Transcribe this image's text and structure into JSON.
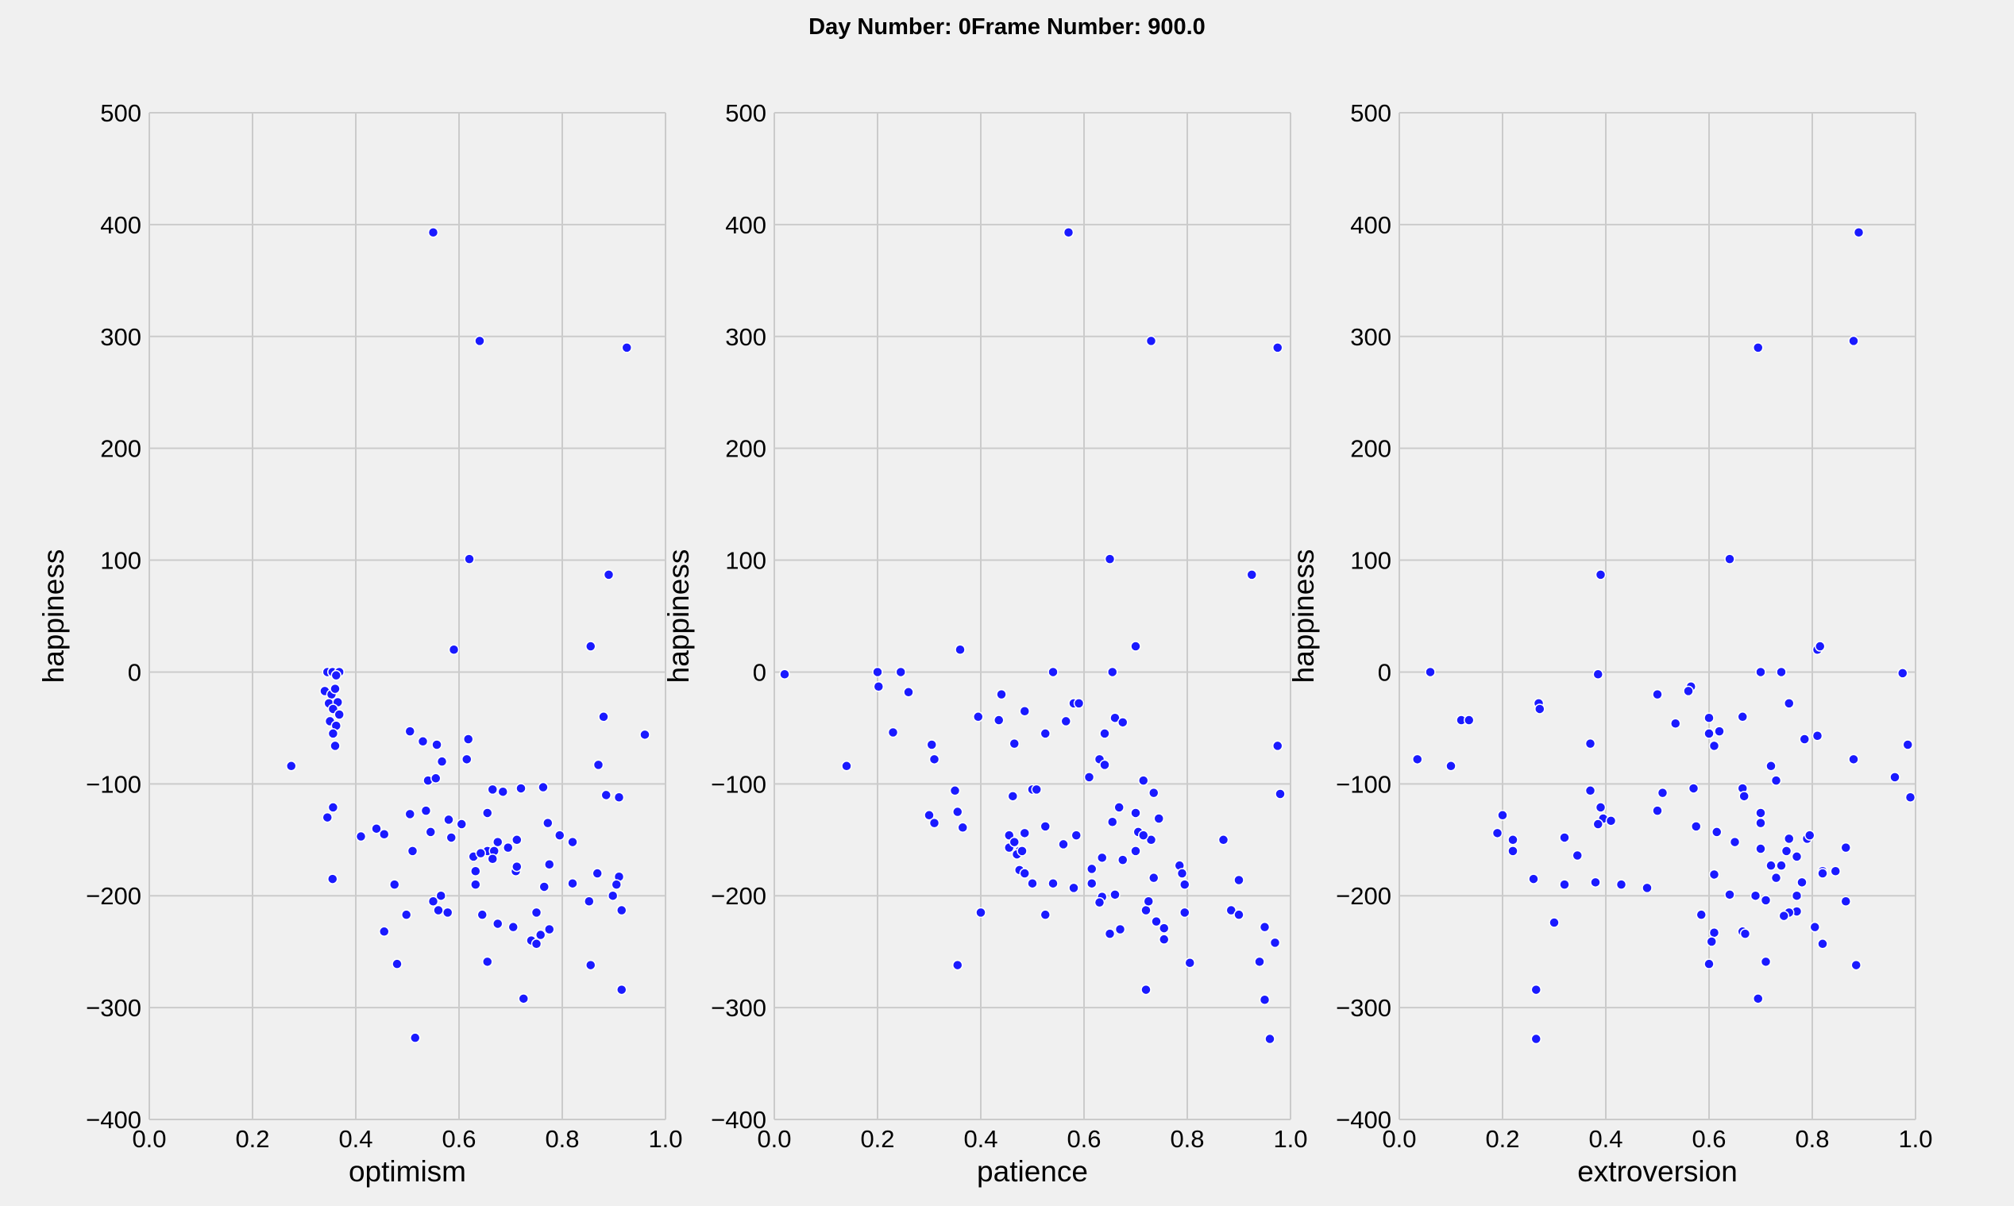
{
  "colors": {
    "background": "#f0f0f0",
    "grid": "#cbcbcb",
    "point": "#1a1aff",
    "point_edge": "#ffffff",
    "text": "#000000"
  },
  "figure": {
    "title": "Day Number: 0Frame Number: 900.0"
  },
  "chart_data": [
    {
      "type": "scatter",
      "title": "",
      "xlabel": "optimism",
      "ylabel": "happiness",
      "xlim": [
        0.0,
        1.0
      ],
      "ylim": [
        -400,
        500
      ],
      "xticks": [
        0.0,
        0.2,
        0.4,
        0.6,
        0.8,
        1.0
      ],
      "xtick_labels": [
        "0.0",
        "0.2",
        "0.4",
        "0.6",
        "0.8",
        "1.0"
      ],
      "yticks": [
        500,
        400,
        300,
        200,
        100,
        0,
        -100,
        -200,
        -300,
        -400
      ],
      "ytick_labels": [
        "500",
        "400",
        "300",
        "200",
        "100",
        "0",
        "−100",
        "−200",
        "−300",
        "−400"
      ],
      "grid": true,
      "points": [
        [
          0.55,
          393
        ],
        [
          0.64,
          296
        ],
        [
          0.925,
          290
        ],
        [
          0.62,
          101
        ],
        [
          0.89,
          87
        ],
        [
          0.59,
          20
        ],
        [
          0.855,
          23
        ],
        [
          0.345,
          0
        ],
        [
          0.355,
          0
        ],
        [
          0.368,
          0
        ],
        [
          0.362,
          -3
        ],
        [
          0.34,
          -17
        ],
        [
          0.353,
          -20
        ],
        [
          0.36,
          -15
        ],
        [
          0.348,
          -28
        ],
        [
          0.365,
          -27
        ],
        [
          0.356,
          -33
        ],
        [
          0.368,
          -38
        ],
        [
          0.35,
          -44
        ],
        [
          0.362,
          -48
        ],
        [
          0.356,
          -55
        ],
        [
          0.36,
          -66
        ],
        [
          0.88,
          -40
        ],
        [
          0.96,
          -56
        ],
        [
          0.87,
          -83
        ],
        [
          0.275,
          -84
        ],
        [
          0.505,
          -53
        ],
        [
          0.53,
          -62
        ],
        [
          0.557,
          -65
        ],
        [
          0.618,
          -60
        ],
        [
          0.615,
          -78
        ],
        [
          0.567,
          -80
        ],
        [
          0.54,
          -97
        ],
        [
          0.555,
          -95
        ],
        [
          0.885,
          -110
        ],
        [
          0.91,
          -112
        ],
        [
          0.72,
          -104
        ],
        [
          0.763,
          -103
        ],
        [
          0.665,
          -105
        ],
        [
          0.685,
          -107
        ],
        [
          0.356,
          -121
        ],
        [
          0.345,
          -130
        ],
        [
          0.505,
          -127
        ],
        [
          0.536,
          -124
        ],
        [
          0.58,
          -132
        ],
        [
          0.605,
          -136
        ],
        [
          0.655,
          -126
        ],
        [
          0.772,
          -135
        ],
        [
          0.44,
          -140
        ],
        [
          0.455,
          -145
        ],
        [
          0.41,
          -147
        ],
        [
          0.545,
          -143
        ],
        [
          0.585,
          -148
        ],
        [
          0.795,
          -146
        ],
        [
          0.82,
          -152
        ],
        [
          0.51,
          -160
        ],
        [
          0.675,
          -152
        ],
        [
          0.712,
          -150
        ],
        [
          0.655,
          -160
        ],
        [
          0.668,
          -160
        ],
        [
          0.695,
          -157
        ],
        [
          0.628,
          -165
        ],
        [
          0.642,
          -162
        ],
        [
          0.665,
          -167
        ],
        [
          0.632,
          -178
        ],
        [
          0.71,
          -178
        ],
        [
          0.712,
          -174
        ],
        [
          0.775,
          -172
        ],
        [
          0.868,
          -180
        ],
        [
          0.91,
          -183
        ],
        [
          0.632,
          -190
        ],
        [
          0.765,
          -192
        ],
        [
          0.905,
          -190
        ],
        [
          0.82,
          -189
        ],
        [
          0.355,
          -185
        ],
        [
          0.475,
          -190
        ],
        [
          0.898,
          -200
        ],
        [
          0.852,
          -205
        ],
        [
          0.55,
          -205
        ],
        [
          0.565,
          -200
        ],
        [
          0.915,
          -213
        ],
        [
          0.498,
          -217
        ],
        [
          0.56,
          -213
        ],
        [
          0.578,
          -215
        ],
        [
          0.645,
          -217
        ],
        [
          0.75,
          -215
        ],
        [
          0.455,
          -232
        ],
        [
          0.675,
          -225
        ],
        [
          0.705,
          -228
        ],
        [
          0.775,
          -230
        ],
        [
          0.758,
          -235
        ],
        [
          0.74,
          -240
        ],
        [
          0.75,
          -243
        ],
        [
          0.48,
          -261
        ],
        [
          0.655,
          -259
        ],
        [
          0.855,
          -262
        ],
        [
          0.725,
          -292
        ],
        [
          0.915,
          -284
        ],
        [
          0.515,
          -327
        ]
      ]
    },
    {
      "type": "scatter",
      "title": "",
      "xlabel": "patience",
      "ylabel": "happiness",
      "xlim": [
        0.0,
        1.0
      ],
      "ylim": [
        -400,
        500
      ],
      "xticks": [
        0.0,
        0.2,
        0.4,
        0.6,
        0.8,
        1.0
      ],
      "xtick_labels": [
        "0.0",
        "0.2",
        "0.4",
        "0.6",
        "0.8",
        "1.0"
      ],
      "yticks": [
        500,
        400,
        300,
        200,
        100,
        0,
        -100,
        -200,
        -300,
        -400
      ],
      "ytick_labels": [
        "500",
        "400",
        "300",
        "200",
        "100",
        "0",
        "−100",
        "−200",
        "−300",
        "−400"
      ],
      "grid": true,
      "points": [
        [
          0.57,
          393
        ],
        [
          0.73,
          296
        ],
        [
          0.975,
          290
        ],
        [
          0.65,
          101
        ],
        [
          0.925,
          87
        ],
        [
          0.02,
          -2
        ],
        [
          0.2,
          0
        ],
        [
          0.245,
          0
        ],
        [
          0.36,
          20
        ],
        [
          0.54,
          0
        ],
        [
          0.655,
          0
        ],
        [
          0.7,
          23
        ],
        [
          0.202,
          -13
        ],
        [
          0.26,
          -18
        ],
        [
          0.44,
          -20
        ],
        [
          0.58,
          -28
        ],
        [
          0.59,
          -28
        ],
        [
          0.485,
          -35
        ],
        [
          0.395,
          -40
        ],
        [
          0.435,
          -43
        ],
        [
          0.565,
          -44
        ],
        [
          0.66,
          -41
        ],
        [
          0.675,
          -45
        ],
        [
          0.23,
          -54
        ],
        [
          0.525,
          -55
        ],
        [
          0.64,
          -55
        ],
        [
          0.305,
          -65
        ],
        [
          0.465,
          -64
        ],
        [
          0.975,
          -66
        ],
        [
          0.31,
          -78
        ],
        [
          0.14,
          -84
        ],
        [
          0.63,
          -78
        ],
        [
          0.64,
          -83
        ],
        [
          0.61,
          -94
        ],
        [
          0.715,
          -97
        ],
        [
          0.35,
          -106
        ],
        [
          0.5,
          -105
        ],
        [
          0.508,
          -105
        ],
        [
          0.735,
          -108
        ],
        [
          0.98,
          -109
        ],
        [
          0.462,
          -111
        ],
        [
          0.355,
          -125
        ],
        [
          0.3,
          -128
        ],
        [
          0.31,
          -135
        ],
        [
          0.365,
          -139
        ],
        [
          0.485,
          -144
        ],
        [
          0.668,
          -121
        ],
        [
          0.7,
          -126
        ],
        [
          0.745,
          -131
        ],
        [
          0.655,
          -134
        ],
        [
          0.525,
          -138
        ],
        [
          0.455,
          -146
        ],
        [
          0.585,
          -146
        ],
        [
          0.73,
          -150
        ],
        [
          0.705,
          -143
        ],
        [
          0.715,
          -146
        ],
        [
          0.87,
          -150
        ],
        [
          0.455,
          -157
        ],
        [
          0.465,
          -152
        ],
        [
          0.475,
          -160
        ],
        [
          0.47,
          -163
        ],
        [
          0.48,
          -160
        ],
        [
          0.56,
          -154
        ],
        [
          0.7,
          -160
        ],
        [
          0.675,
          -168
        ],
        [
          0.635,
          -166
        ],
        [
          0.615,
          -176
        ],
        [
          0.785,
          -173
        ],
        [
          0.79,
          -180
        ],
        [
          0.475,
          -177
        ],
        [
          0.485,
          -180
        ],
        [
          0.5,
          -189
        ],
        [
          0.54,
          -189
        ],
        [
          0.58,
          -193
        ],
        [
          0.615,
          -189
        ],
        [
          0.735,
          -184
        ],
        [
          0.795,
          -190
        ],
        [
          0.9,
          -186
        ],
        [
          0.635,
          -201
        ],
        [
          0.66,
          -199
        ],
        [
          0.63,
          -206
        ],
        [
          0.72,
          -213
        ],
        [
          0.725,
          -205
        ],
        [
          0.74,
          -223
        ],
        [
          0.755,
          -229
        ],
        [
          0.67,
          -230
        ],
        [
          0.65,
          -234
        ],
        [
          0.755,
          -239
        ],
        [
          0.525,
          -217
        ],
        [
          0.4,
          -215
        ],
        [
          0.795,
          -215
        ],
        [
          0.885,
          -213
        ],
        [
          0.9,
          -217
        ],
        [
          0.95,
          -228
        ],
        [
          0.97,
          -242
        ],
        [
          0.355,
          -262
        ],
        [
          0.805,
          -260
        ],
        [
          0.94,
          -259
        ],
        [
          0.72,
          -284
        ],
        [
          0.95,
          -293
        ],
        [
          0.96,
          -328
        ]
      ]
    },
    {
      "type": "scatter",
      "title": "",
      "xlabel": "extroversion",
      "ylabel": "happiness",
      "xlim": [
        0.0,
        1.0
      ],
      "ylim": [
        -400,
        500
      ],
      "xticks": [
        0.0,
        0.2,
        0.4,
        0.6,
        0.8,
        1.0
      ],
      "xtick_labels": [
        "0.0",
        "0.2",
        "0.4",
        "0.6",
        "0.8",
        "1.0"
      ],
      "yticks": [
        500,
        400,
        300,
        200,
        100,
        0,
        -100,
        -200,
        -300,
        -400
      ],
      "ytick_labels": [
        "500",
        "400",
        "300",
        "200",
        "100",
        "0",
        "−100",
        "−200",
        "−300",
        "−400"
      ],
      "grid": true,
      "points": [
        [
          0.89,
          393
        ],
        [
          0.88,
          296
        ],
        [
          0.695,
          290
        ],
        [
          0.64,
          101
        ],
        [
          0.39,
          87
        ],
        [
          0.06,
          0
        ],
        [
          0.385,
          -2
        ],
        [
          0.7,
          0
        ],
        [
          0.74,
          0
        ],
        [
          0.975,
          -1
        ],
        [
          0.81,
          20
        ],
        [
          0.815,
          23
        ],
        [
          0.27,
          -28
        ],
        [
          0.272,
          -33
        ],
        [
          0.5,
          -20
        ],
        [
          0.565,
          -13
        ],
        [
          0.56,
          -17
        ],
        [
          0.755,
          -28
        ],
        [
          0.12,
          -43
        ],
        [
          0.135,
          -43
        ],
        [
          0.535,
          -46
        ],
        [
          0.6,
          -41
        ],
        [
          0.665,
          -40
        ],
        [
          0.6,
          -55
        ],
        [
          0.61,
          -66
        ],
        [
          0.62,
          -53
        ],
        [
          0.37,
          -64
        ],
        [
          0.785,
          -60
        ],
        [
          0.81,
          -57
        ],
        [
          0.035,
          -78
        ],
        [
          0.1,
          -84
        ],
        [
          0.88,
          -78
        ],
        [
          0.72,
          -84
        ],
        [
          0.73,
          -97
        ],
        [
          0.96,
          -94
        ],
        [
          0.985,
          -65
        ],
        [
          0.37,
          -106
        ],
        [
          0.51,
          -108
        ],
        [
          0.57,
          -104
        ],
        [
          0.665,
          -104
        ],
        [
          0.668,
          -111
        ],
        [
          0.99,
          -112
        ],
        [
          0.39,
          -121
        ],
        [
          0.395,
          -131
        ],
        [
          0.385,
          -136
        ],
        [
          0.41,
          -133
        ],
        [
          0.5,
          -124
        ],
        [
          0.7,
          -126
        ],
        [
          0.7,
          -135
        ],
        [
          0.2,
          -128
        ],
        [
          0.19,
          -144
        ],
        [
          0.22,
          -150
        ],
        [
          0.22,
          -160
        ],
        [
          0.32,
          -148
        ],
        [
          0.345,
          -164
        ],
        [
          0.575,
          -138
        ],
        [
          0.615,
          -143
        ],
        [
          0.65,
          -152
        ],
        [
          0.7,
          -158
        ],
        [
          0.755,
          -149
        ],
        [
          0.75,
          -160
        ],
        [
          0.72,
          -173
        ],
        [
          0.74,
          -173
        ],
        [
          0.73,
          -184
        ],
        [
          0.79,
          -149
        ],
        [
          0.795,
          -146
        ],
        [
          0.82,
          -178
        ],
        [
          0.82,
          -180
        ],
        [
          0.845,
          -178
        ],
        [
          0.865,
          -157
        ],
        [
          0.77,
          -165
        ],
        [
          0.78,
          -188
        ],
        [
          0.26,
          -185
        ],
        [
          0.32,
          -190
        ],
        [
          0.38,
          -188
        ],
        [
          0.43,
          -190
        ],
        [
          0.48,
          -193
        ],
        [
          0.61,
          -181
        ],
        [
          0.64,
          -199
        ],
        [
          0.69,
          -200
        ],
        [
          0.71,
          -204
        ],
        [
          0.77,
          -200
        ],
        [
          0.77,
          -214
        ],
        [
          0.755,
          -215
        ],
        [
          0.745,
          -218
        ],
        [
          0.865,
          -205
        ],
        [
          0.3,
          -224
        ],
        [
          0.61,
          -233
        ],
        [
          0.605,
          -241
        ],
        [
          0.665,
          -232
        ],
        [
          0.67,
          -234
        ],
        [
          0.805,
          -228
        ],
        [
          0.82,
          -243
        ],
        [
          0.6,
          -261
        ],
        [
          0.71,
          -259
        ],
        [
          0.885,
          -262
        ],
        [
          0.265,
          -284
        ],
        [
          0.695,
          -292
        ],
        [
          0.265,
          -328
        ],
        [
          0.585,
          -217
        ]
      ]
    }
  ]
}
